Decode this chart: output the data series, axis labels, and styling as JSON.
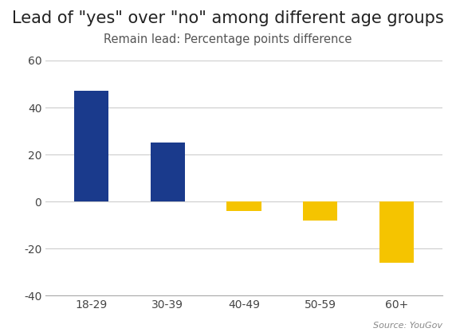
{
  "categories": [
    "18-29",
    "30-39",
    "40-49",
    "50-59",
    "60+"
  ],
  "values": [
    47,
    25,
    -4,
    -8,
    -26
  ],
  "bar_colors": [
    "#1a3a8c",
    "#1a3a8c",
    "#f5c400",
    "#f5c400",
    "#f5c400"
  ],
  "title": "Lead of \"yes\" over \"no\" among different age groups",
  "subtitle": "Remain lead: Percentage points difference",
  "ylim": [
    -40,
    60
  ],
  "yticks": [
    -40,
    -20,
    0,
    20,
    40,
    60
  ],
  "source_text": "Source: YouGov",
  "title_fontsize": 15,
  "subtitle_fontsize": 10.5,
  "background_color": "#ffffff",
  "grid_color": "#cccccc",
  "tick_fontsize": 10,
  "bar_width": 0.45
}
